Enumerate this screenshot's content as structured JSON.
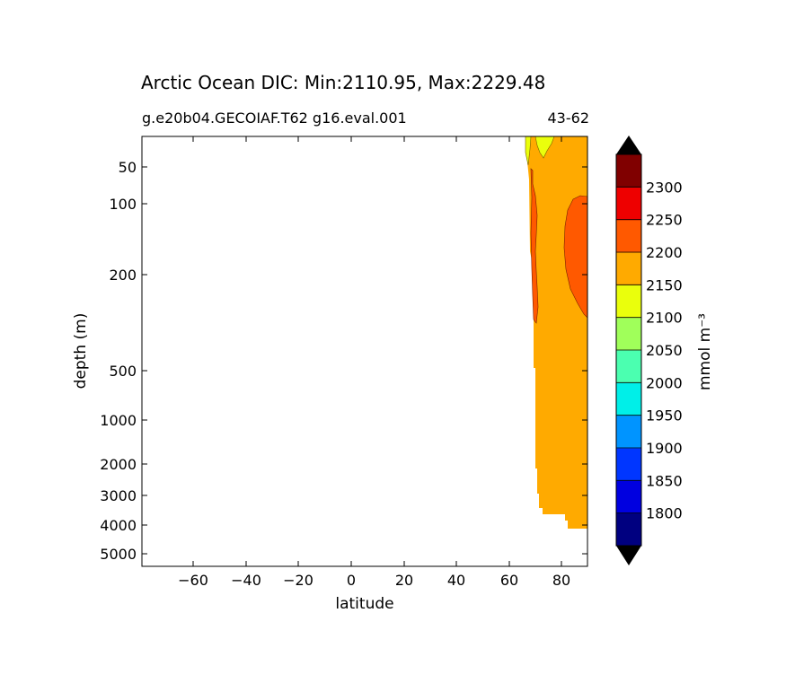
{
  "chart_data": {
    "type": "heatmap",
    "title": "Arctic Ocean DIC: Min:2110.95, Max:2229.48",
    "subtitle_left": "g.e20b04.GECOIAF.T62 g16.eval.001",
    "subtitle_right": "43-62",
    "xlabel": "latitude",
    "ylabel": "depth (m)",
    "xlim": [
      -80,
      90
    ],
    "x_ticks": [
      -60,
      -40,
      -20,
      0,
      20,
      40,
      60,
      80
    ],
    "x_tick_labels": [
      "−60",
      "−40",
      "−20",
      "0",
      "20",
      "40",
      "60",
      "80"
    ],
    "y_ticks": [
      50,
      100,
      200,
      500,
      1000,
      2000,
      3000,
      4000,
      5000
    ],
    "y_tick_labels": [
      "50",
      "100",
      "200",
      "500",
      "1000",
      "2000",
      "3000",
      "4000",
      "5000"
    ],
    "colorbar": {
      "label": "mmol m⁻³",
      "levels": [
        1800,
        1850,
        1900,
        1950,
        2000,
        2050,
        2100,
        2150,
        2200,
        2250,
        2300
      ],
      "level_labels": [
        "1800",
        "1850",
        "1900",
        "1950",
        "2000",
        "2050",
        "2100",
        "2150",
        "2200",
        "2250",
        "2300"
      ],
      "colors": [
        "#000080",
        "#0000e0",
        "#0036ff",
        "#0094ff",
        "#00efe8",
        "#4bffb0",
        "#a0ff5a",
        "#eaff0c",
        "#ffaa00",
        "#ff5900",
        "#ee0000",
        "#800000"
      ],
      "extend": "both",
      "extend_low_color": "#000000",
      "extend_high_color": "#000000"
    },
    "fields": {
      "background_color": "#ffaa00",
      "region_2150_2200_color": "#ffaa00",
      "region_2100_2150_color": "#eaff0c",
      "region_2200_2250_color": "#ff5900"
    }
  }
}
